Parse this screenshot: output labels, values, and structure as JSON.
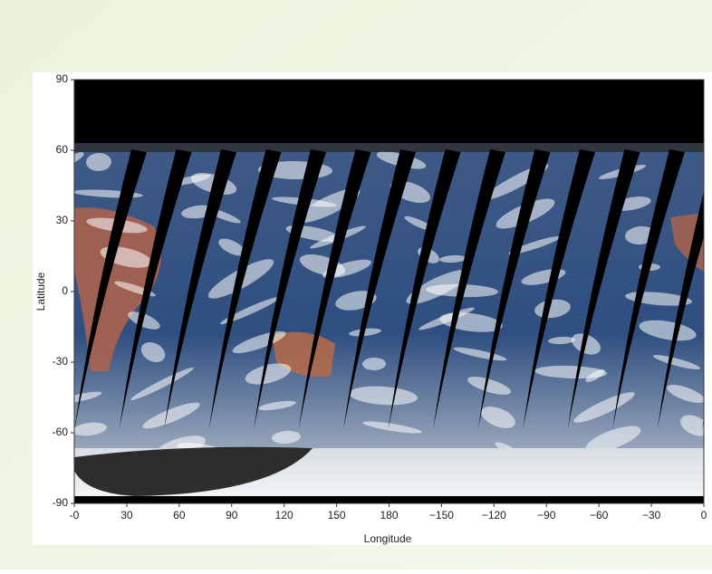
{
  "chart_data": {
    "type": "image",
    "xlabel": "Longitude",
    "ylabel": "Latitude",
    "xlim": [
      0,
      360
    ],
    "ylim": [
      -90,
      90
    ],
    "xticks": [
      {
        "value": 0,
        "label": "-0"
      },
      30,
      60,
      90,
      120,
      150,
      180,
      {
        "value": 210,
        "label": "−150"
      },
      {
        "value": 240,
        "label": "−120"
      },
      {
        "value": 270,
        "label": "−90"
      },
      {
        "value": 300,
        "label": "−60"
      },
      {
        "value": 330,
        "label": "−30"
      },
      {
        "value": 360,
        "label": "0"
      }
    ],
    "yticks": [
      -90,
      -60,
      -30,
      0,
      30,
      60,
      90
    ]
  }
}
